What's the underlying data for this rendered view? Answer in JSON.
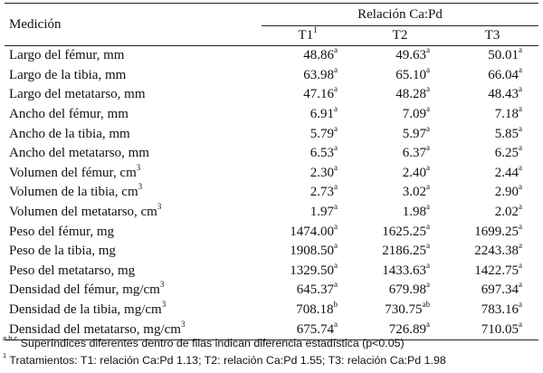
{
  "table": {
    "header": {
      "row_label": "Medición",
      "group_label": "Relación Ca:Pd",
      "columns": [
        {
          "label": "T1",
          "sup": "1"
        },
        {
          "label": "T2",
          "sup": ""
        },
        {
          "label": "T3",
          "sup": ""
        }
      ]
    },
    "rows": [
      {
        "label": "Largo del fémur, mm",
        "label_sup": "",
        "values": [
          {
            "v": "48.86",
            "s": "a"
          },
          {
            "v": "49.63",
            "s": "a"
          },
          {
            "v": "50.01",
            "s": "a"
          }
        ]
      },
      {
        "label": "Largo de la tibia, mm",
        "label_sup": "",
        "values": [
          {
            "v": "63.98",
            "s": "a"
          },
          {
            "v": "65.10",
            "s": "a"
          },
          {
            "v": "66.04",
            "s": "a"
          }
        ]
      },
      {
        "label": "Largo del metatarso, mm",
        "label_sup": "",
        "values": [
          {
            "v": "47.16",
            "s": "a"
          },
          {
            "v": "48.28",
            "s": "a"
          },
          {
            "v": "48.43",
            "s": "a"
          }
        ]
      },
      {
        "label": "Ancho del fémur, mm",
        "label_sup": "",
        "values": [
          {
            "v": "6.91",
            "s": "a"
          },
          {
            "v": "7.09",
            "s": "a"
          },
          {
            "v": "7.18",
            "s": "a"
          }
        ]
      },
      {
        "label": "Ancho de la tibia, mm",
        "label_sup": "",
        "values": [
          {
            "v": "5.79",
            "s": "a"
          },
          {
            "v": "5.97",
            "s": "a"
          },
          {
            "v": "5.85",
            "s": "a"
          }
        ]
      },
      {
        "label": "Ancho del metatarso, mm",
        "label_sup": "",
        "values": [
          {
            "v": "6.53",
            "s": "a"
          },
          {
            "v": "6.37",
            "s": "a"
          },
          {
            "v": "6.25",
            "s": "a"
          }
        ]
      },
      {
        "label": "Volumen del fémur, cm",
        "label_sup": "3",
        "values": [
          {
            "v": "2.30",
            "s": "a"
          },
          {
            "v": "2.40",
            "s": "a"
          },
          {
            "v": "2.44",
            "s": "a"
          }
        ]
      },
      {
        "label": "Volumen de la tibia, cm",
        "label_sup": "3",
        "values": [
          {
            "v": "2.73",
            "s": "a"
          },
          {
            "v": "3.02",
            "s": "a"
          },
          {
            "v": "2.90",
            "s": "a"
          }
        ]
      },
      {
        "label": "Volumen del metatarso, cm",
        "label_sup": "3",
        "values": [
          {
            "v": "1.97",
            "s": "a"
          },
          {
            "v": "1.98",
            "s": "a"
          },
          {
            "v": "2.02",
            "s": "a"
          }
        ]
      },
      {
        "label": "Peso del fémur, mg",
        "label_sup": "",
        "values": [
          {
            "v": "1474.00",
            "s": "a"
          },
          {
            "v": "1625.25",
            "s": "a"
          },
          {
            "v": "1699.25",
            "s": "a"
          }
        ]
      },
      {
        "label": "Peso de la tibia, mg",
        "label_sup": "",
        "values": [
          {
            "v": "1908.50",
            "s": "a"
          },
          {
            "v": "2186.25",
            "s": "a"
          },
          {
            "v": "2243.38",
            "s": "a"
          }
        ]
      },
      {
        "label": "Peso del metatarso, mg",
        "label_sup": "",
        "values": [
          {
            "v": "1329.50",
            "s": "a"
          },
          {
            "v": "1433.63",
            "s": "a"
          },
          {
            "v": "1422.75",
            "s": "a"
          }
        ]
      },
      {
        "label": "Densidad del fémur, mg/cm",
        "label_sup": "3",
        "values": [
          {
            "v": "645.37",
            "s": "a"
          },
          {
            "v": "679.98",
            "s": "a"
          },
          {
            "v": "697.34",
            "s": "a"
          }
        ]
      },
      {
        "label": "Densidad de la tibia, mg/cm",
        "label_sup": "3",
        "values": [
          {
            "v": "708.18",
            "s": "b"
          },
          {
            "v": "730.75",
            "s": "ab"
          },
          {
            "v": "783.16",
            "s": "a"
          }
        ]
      },
      {
        "label": "Densidad del metatarso, mg/cm",
        "label_sup": "3",
        "values": [
          {
            "v": "675.74",
            "s": "a"
          },
          {
            "v": "726.89",
            "s": "a"
          },
          {
            "v": "710.05",
            "s": "a"
          }
        ]
      }
    ]
  },
  "notes": {
    "note1_sup": "a,b,c",
    "note1_text": " Superíndices diferentes dentro de filas indican diferencia estadística (p<0.05)",
    "note2_sup": "1",
    "note2_text": " Tratamientos: T1: relación Ca:Pd 1.13; T2: relación Ca:Pd 1.55; T3: relación Ca:Pd 1.98"
  }
}
